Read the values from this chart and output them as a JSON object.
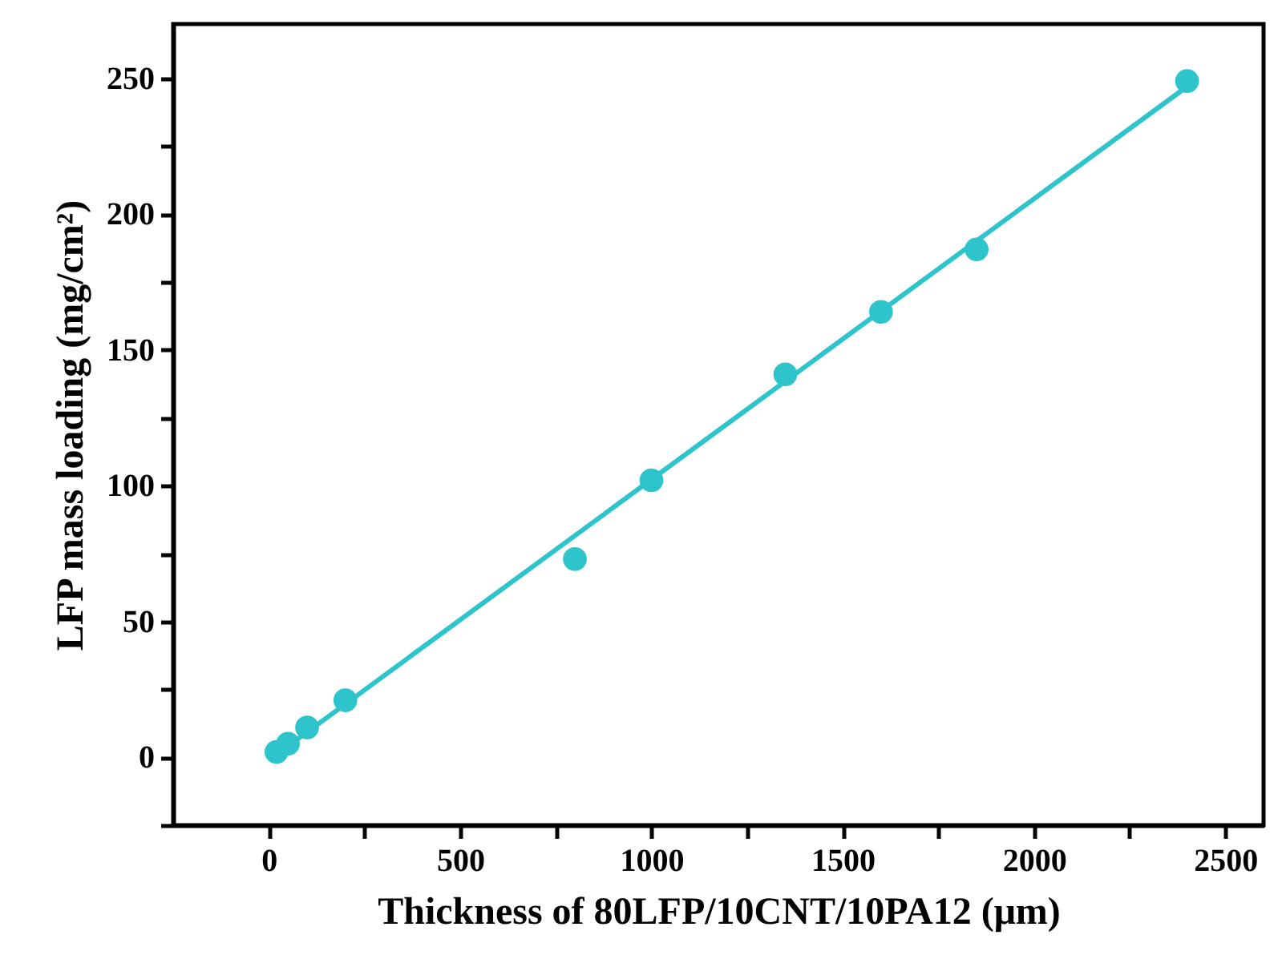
{
  "chart_data": {
    "type": "scatter",
    "xlabel": "Thickness of 80LFP/10CNT/10PA12 (μm)",
    "ylabel": "LFP mass loading (mg/cm²)",
    "x": [
      20,
      50,
      100,
      200,
      800,
      1000,
      1350,
      1600,
      1850,
      2400
    ],
    "series": [
      {
        "color": "#2ec4cc",
        "marker": "circle",
        "values": [
          2,
          5,
          11,
          21,
          73,
          102,
          141,
          164,
          187,
          249
        ]
      },
      {
        "type": "line",
        "color": "#2ec4cc",
        "marker": "none",
        "line_style": "solid",
        "x": [
          20,
          2400
        ],
        "values": [
          1,
          247
        ]
      }
    ],
    "xlim": [
      -250,
      2600
    ],
    "xticks": [
      0,
      {
        "value": 250,
        "label": null
      },
      500,
      {
        "value": 750,
        "label": null
      },
      1000,
      {
        "value": 1250,
        "label": null
      },
      1500,
      {
        "value": 1750,
        "label": null
      },
      2000,
      {
        "value": 2250,
        "label": null
      },
      2500
    ],
    "ylim": [
      -25,
      270
    ],
    "yticks": [
      {
        "value": -25,
        "label": null
      },
      0,
      {
        "value": 25,
        "label": null
      },
      50,
      {
        "value": 75,
        "label": null
      },
      100,
      {
        "value": 125,
        "label": null
      },
      150,
      {
        "value": 175,
        "label": null
      },
      200,
      {
        "value": 225,
        "label": null
      },
      250
    ],
    "grid": false
  }
}
